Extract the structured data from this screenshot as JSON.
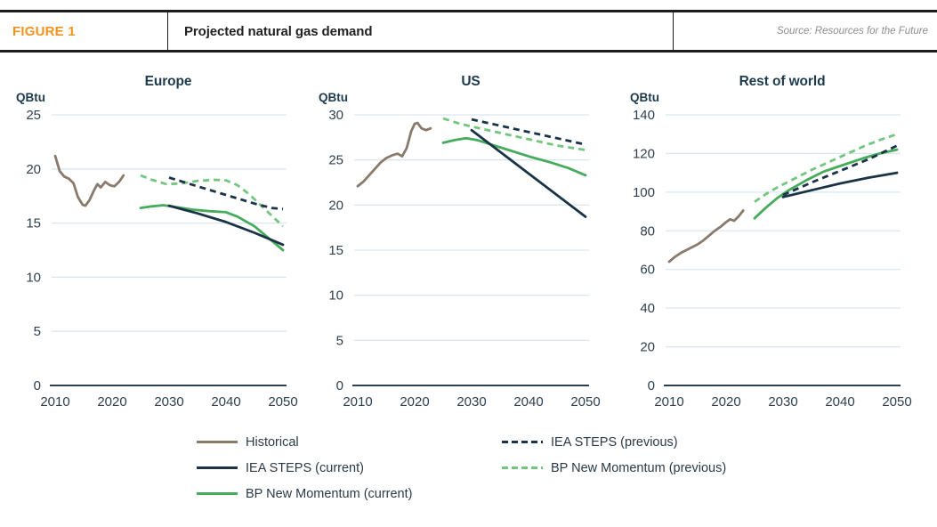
{
  "header": {
    "figure_label": "FIGURE 1",
    "title": "Projected natural gas demand",
    "source": "Source: Resources for the Future"
  },
  "colors": {
    "accent_orange": "#F5921F",
    "historical": "#8A7A6C",
    "iea_navy": "#1B3347",
    "bp_green": "#46AC5C",
    "bp_green_light": "#74C57F",
    "gridline": "#DAE7F2",
    "axis_line": "#2E404E",
    "tick_text": "#2E404E"
  },
  "legend": {
    "left": [
      {
        "label": "Historical",
        "color_key": "historical",
        "dashed": false
      },
      {
        "label": "IEA STEPS (current)",
        "color_key": "iea_navy",
        "dashed": false
      },
      {
        "label": "BP New Momentum (current)",
        "color_key": "bp_green",
        "dashed": false
      }
    ],
    "right": [
      {
        "label": "IEA STEPS (previous)",
        "color_key": "iea_navy",
        "dashed": true
      },
      {
        "label": "BP New Momentum (previous)",
        "color_key": "bp_green_light",
        "dashed": true
      }
    ]
  },
  "chart_data": [
    {
      "type": "line",
      "title": "Europe",
      "ylabel": "QBtu",
      "ylim": [
        0,
        25
      ],
      "yticks": [
        0,
        5,
        10,
        15,
        20,
        25
      ],
      "xticks": [
        2010,
        2020,
        2030,
        2040,
        2050
      ],
      "xlim": [
        2009,
        2051
      ],
      "grid": true,
      "series": [
        {
          "name": "Historical",
          "color_key": "historical",
          "dashed": false,
          "points": [
            [
              2010,
              21.2
            ],
            [
              2010.8,
              19.8
            ],
            [
              2011.6,
              19.3
            ],
            [
              2012.4,
              19.1
            ],
            [
              2013.2,
              18.7
            ],
            [
              2014,
              17.4
            ],
            [
              2014.8,
              16.7
            ],
            [
              2015.3,
              16.6
            ],
            [
              2016,
              17.1
            ],
            [
              2016.8,
              18.0
            ],
            [
              2017.4,
              18.6
            ],
            [
              2018,
              18.3
            ],
            [
              2018.8,
              18.8
            ],
            [
              2019.6,
              18.5
            ],
            [
              2020.4,
              18.4
            ],
            [
              2021.2,
              18.8
            ],
            [
              2022,
              19.4
            ]
          ]
        },
        {
          "name": "BP New Momentum (current)",
          "color_key": "bp_green",
          "dashed": false,
          "points": [
            [
              2025,
              16.4
            ],
            [
              2027,
              16.55
            ],
            [
              2029,
              16.65
            ],
            [
              2031,
              16.5
            ],
            [
              2034,
              16.25
            ],
            [
              2037,
              16.1
            ],
            [
              2040,
              16.0
            ],
            [
              2042,
              15.6
            ],
            [
              2045,
              14.7
            ],
            [
              2047.5,
              13.6
            ],
            [
              2050,
              12.5
            ]
          ]
        },
        {
          "name": "BP New Momentum (previous)",
          "color_key": "bp_green_light",
          "dashed": true,
          "points": [
            [
              2025,
              19.4
            ],
            [
              2027,
              19.0
            ],
            [
              2029.5,
              18.6
            ],
            [
              2032,
              18.65
            ],
            [
              2035,
              18.9
            ],
            [
              2038,
              19.0
            ],
            [
              2040,
              18.95
            ],
            [
              2042,
              18.5
            ],
            [
              2044,
              17.7
            ],
            [
              2046,
              16.7
            ],
            [
              2048,
              15.7
            ],
            [
              2050,
              14.7
            ]
          ]
        },
        {
          "name": "IEA STEPS (previous)",
          "color_key": "iea_navy",
          "dashed": true,
          "points": [
            [
              2030,
              19.2
            ],
            [
              2035,
              18.4
            ],
            [
              2040,
              17.6
            ],
            [
              2045,
              16.8
            ],
            [
              2048,
              16.4
            ],
            [
              2050,
              16.3
            ]
          ]
        },
        {
          "name": "IEA STEPS (current)",
          "color_key": "iea_navy",
          "dashed": false,
          "points": [
            [
              2030,
              16.6
            ],
            [
              2035,
              15.9
            ],
            [
              2040,
              15.1
            ],
            [
              2045,
              14.1
            ],
            [
              2050,
              13.0
            ]
          ]
        }
      ]
    },
    {
      "type": "line",
      "title": "US",
      "ylabel": "QBtu",
      "ylim": [
        0,
        30
      ],
      "yticks": [
        0,
        5,
        10,
        15,
        20,
        25,
        30
      ],
      "xticks": [
        2010,
        2020,
        2030,
        2040,
        2050
      ],
      "xlim": [
        2009,
        2051
      ],
      "grid": true,
      "series": [
        {
          "name": "Historical",
          "color_key": "historical",
          "dashed": false,
          "points": [
            [
              2010,
              22.1
            ],
            [
              2011,
              22.6
            ],
            [
              2012,
              23.3
            ],
            [
              2013,
              24.0
            ],
            [
              2014,
              24.7
            ],
            [
              2015,
              25.2
            ],
            [
              2016,
              25.5
            ],
            [
              2017,
              25.7
            ],
            [
              2017.8,
              25.4
            ],
            [
              2018.6,
              26.3
            ],
            [
              2019.4,
              28.2
            ],
            [
              2020,
              29.0
            ],
            [
              2020.5,
              29.1
            ],
            [
              2021.2,
              28.5
            ],
            [
              2022,
              28.3
            ],
            [
              2022.8,
              28.5
            ]
          ]
        },
        {
          "name": "BP New Momentum (current)",
          "color_key": "bp_green",
          "dashed": false,
          "points": [
            [
              2025,
              26.9
            ],
            [
              2027,
              27.2
            ],
            [
              2029,
              27.4
            ],
            [
              2031,
              27.2
            ],
            [
              2033,
              26.8
            ],
            [
              2036,
              26.2
            ],
            [
              2040,
              25.4
            ],
            [
              2044,
              24.7
            ],
            [
              2047,
              24.1
            ],
            [
              2050,
              23.3
            ]
          ]
        },
        {
          "name": "BP New Momentum (previous)",
          "color_key": "bp_green_light",
          "dashed": true,
          "points": [
            [
              2025,
              29.6
            ],
            [
              2028,
              29.0
            ],
            [
              2030,
              28.7
            ],
            [
              2035,
              28.0
            ],
            [
              2040,
              27.3
            ],
            [
              2045,
              26.6
            ],
            [
              2050,
              26.1
            ]
          ]
        },
        {
          "name": "IEA STEPS (previous)",
          "color_key": "iea_navy",
          "dashed": true,
          "points": [
            [
              2030,
              29.5
            ],
            [
              2035,
              28.8
            ],
            [
              2040,
              28.1
            ],
            [
              2045,
              27.4
            ],
            [
              2050,
              26.7
            ]
          ]
        },
        {
          "name": "IEA STEPS (current)",
          "color_key": "iea_navy",
          "dashed": false,
          "points": [
            [
              2030,
              28.3
            ],
            [
              2040,
              23.5
            ],
            [
              2050,
              18.7
            ]
          ]
        }
      ]
    },
    {
      "type": "line",
      "title": "Rest of world",
      "ylabel": "QBtu",
      "ylim": [
        0,
        140
      ],
      "yticks": [
        0,
        20,
        40,
        60,
        80,
        100,
        120,
        140
      ],
      "xticks": [
        2010,
        2020,
        2030,
        2040,
        2050
      ],
      "xlim": [
        2009,
        2051
      ],
      "grid": true,
      "series": [
        {
          "name": "Historical",
          "color_key": "historical",
          "dashed": false,
          "points": [
            [
              2010,
              64
            ],
            [
              2011,
              66.5
            ],
            [
              2012,
              68.5
            ],
            [
              2013,
              70
            ],
            [
              2014,
              71.5
            ],
            [
              2015,
              73
            ],
            [
              2016,
              75
            ],
            [
              2017,
              77.5
            ],
            [
              2018,
              80
            ],
            [
              2019,
              82
            ],
            [
              2020,
              84.5
            ],
            [
              2020.7,
              86
            ],
            [
              2021.4,
              85.2
            ],
            [
              2022.2,
              87.5
            ],
            [
              2023,
              90.5
            ]
          ]
        },
        {
          "name": "BP New Momentum (current)",
          "color_key": "bp_green",
          "dashed": false,
          "points": [
            [
              2025,
              86.5
            ],
            [
              2027,
              92
            ],
            [
              2029,
              97
            ],
            [
              2031,
              101
            ],
            [
              2034,
              106
            ],
            [
              2037,
              110.5
            ],
            [
              2040,
              113.5
            ],
            [
              2044,
              117.5
            ],
            [
              2047,
              120
            ],
            [
              2050,
              122
            ]
          ]
        },
        {
          "name": "BP New Momentum (previous)",
          "color_key": "bp_green_light",
          "dashed": true,
          "points": [
            [
              2025,
              95
            ],
            [
              2027,
              99
            ],
            [
              2029,
              102.5
            ],
            [
              2032,
              107
            ],
            [
              2035,
              111.5
            ],
            [
              2038,
              115.5
            ],
            [
              2041,
              119.5
            ],
            [
              2044,
              123.5
            ],
            [
              2047,
              127
            ],
            [
              2050,
              130
            ]
          ]
        },
        {
          "name": "IEA STEPS (previous)",
          "color_key": "iea_navy",
          "dashed": true,
          "points": [
            [
              2030,
              98.5
            ],
            [
              2035,
              105
            ],
            [
              2040,
              111
            ],
            [
              2045,
              117
            ],
            [
              2050,
              124
            ]
          ]
        },
        {
          "name": "IEA STEPS (current)",
          "color_key": "iea_navy",
          "dashed": false,
          "points": [
            [
              2030,
              97.5
            ],
            [
              2035,
              101
            ],
            [
              2040,
              104.5
            ],
            [
              2045,
              107.5
            ],
            [
              2050,
              110
            ]
          ]
        }
      ]
    }
  ]
}
